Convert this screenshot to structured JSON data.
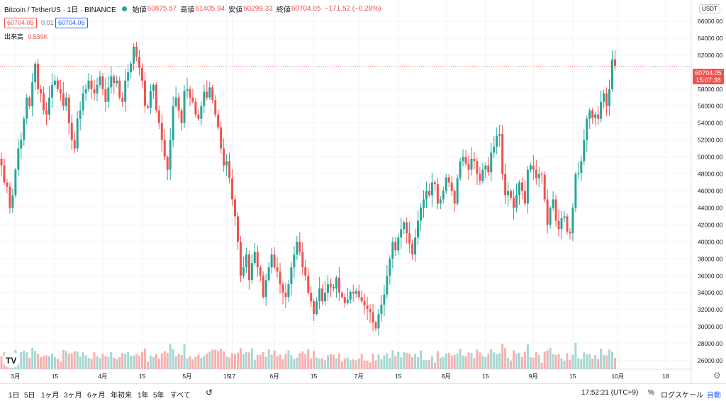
{
  "header": {
    "symbol": "Bitcoin / TetherUS · 1日 · BINANCE",
    "open_label": "始値",
    "open": "60875.57",
    "high_label": "高値",
    "high": "61405.94",
    "low_label": "安値",
    "low": "60299.33",
    "close_label": "終値",
    "close": "60704.05",
    "change": "−171.52 (−0.28%)",
    "sell_price": "60704.05",
    "spread": "0.01",
    "buy_price": "60704.06",
    "volume_label": "出来高",
    "volume_value": "9.539K"
  },
  "currency_label": "USDT",
  "current_price": {
    "value": "60704.05",
    "countdown": "15:07:38"
  },
  "toolbar": {
    "ranges": [
      "1日",
      "5日",
      "1ヶ月",
      "3ヶ月",
      "6ヶ月",
      "年初来",
      "1年",
      "5年",
      "すべて"
    ],
    "goto_icon": "calendar-jump-icon",
    "time": "17:52:21 (UTC+9)",
    "percent_label": "%",
    "log_label": "ログスケール",
    "auto_label": "自動"
  },
  "colors": {
    "up": "#26a69a",
    "down": "#ef5350",
    "up_vol": "#a5d8d2",
    "down_vol": "#f7b0ae",
    "grid": "#f0f3fa"
  },
  "chart_data": {
    "type": "candlestick",
    "y_ticks": [
      "66000.00",
      "64000.00",
      "62000.00",
      "58000.00",
      "56000.00",
      "54000.00",
      "52000.00",
      "50000.00",
      "48000.00",
      "46000.00",
      "44000.00",
      "42000.00",
      "40000.00",
      "38000.00",
      "36000.00",
      "34000.00",
      "32000.00",
      "30000.00",
      "28000.00",
      "26000.00"
    ],
    "y_tick_values": [
      66000,
      64000,
      62000,
      58000,
      56000,
      54000,
      52000,
      50000,
      48000,
      46000,
      44000,
      42000,
      40000,
      38000,
      36000,
      34000,
      32000,
      30000,
      28000,
      26000
    ],
    "ylim": [
      25000,
      68500
    ],
    "x_ticks": [
      {
        "label": "3月",
        "index": 5
      },
      {
        "label": "15",
        "index": 19
      },
      {
        "label": "4月",
        "index": 36
      },
      {
        "label": "15",
        "index": 50
      },
      {
        "label": "5月",
        "index": 66
      },
      {
        "label": "15",
        "index": 80
      },
      {
        "label": "17",
        "index": 82
      },
      {
        "label": "6月",
        "index": 97
      },
      {
        "label": "15",
        "index": 111
      },
      {
        "label": "7月",
        "index": 127
      },
      {
        "label": "15",
        "index": 141
      },
      {
        "label": "8月",
        "index": 158
      },
      {
        "label": "15",
        "index": 172
      },
      {
        "label": "9月",
        "index": 189
      },
      {
        "label": "15",
        "index": 203
      },
      {
        "label": "10月",
        "index": 219
      },
      {
        "label": "18",
        "index": 236
      }
    ],
    "closes": [
      49000,
      47000,
      46500,
      44000,
      45500,
      48500,
      51000,
      52000,
      54500,
      57000,
      56000,
      58800,
      61000,
      58000,
      57500,
      55500,
      55000,
      57000,
      58500,
      59000,
      58000,
      57500,
      56000,
      57000,
      54000,
      52000,
      51000,
      54500,
      55500,
      57500,
      58000,
      59000,
      58000,
      57500,
      58500,
      59500,
      58000,
      56500,
      58200,
      59500,
      58700,
      59000,
      57000,
      56500,
      59000,
      60000,
      61000,
      63000,
      61800,
      60500,
      59000,
      56000,
      55800,
      57800,
      58500,
      55500,
      54000,
      52000,
      50000,
      48500,
      52000,
      56000,
      57000,
      55500,
      54000,
      57800,
      58000,
      57000,
      56500,
      55000,
      54500,
      56000,
      57700,
      57000,
      58200,
      56700,
      55000,
      53500,
      51000,
      49000,
      49500,
      47500,
      45000,
      43000,
      40000,
      36000,
      37000,
      38500,
      35500,
      37500,
      38800,
      37000,
      36000,
      33500,
      35500,
      37000,
      38500,
      37000,
      36500,
      35000,
      34000,
      33500,
      35000,
      37000,
      38500,
      40000,
      38800,
      37000,
      36000,
      34000,
      33000,
      31500,
      33000,
      34500,
      33000,
      34000,
      35000,
      34700,
      34500,
      35800,
      34000,
      33500,
      32800,
      33200,
      34100,
      33900,
      34200,
      33500,
      33000,
      32500,
      32100,
      31700,
      30500,
      29800,
      31500,
      32600,
      33800,
      36000,
      38000,
      40000,
      39000,
      40500,
      41500,
      42300,
      41000,
      39800,
      38500,
      40500,
      42500,
      44000,
      45000,
      46000,
      45500,
      47000,
      46800,
      44500,
      45000,
      46000,
      47600,
      47000,
      46000,
      44500,
      47500,
      49500,
      50000,
      49200,
      48500,
      49800,
      49500,
      48000,
      47200,
      48500,
      49000,
      48200,
      50500,
      51200,
      52500,
      52700,
      48000,
      45500,
      46000,
      45200,
      44000,
      45500,
      47000,
      46000,
      44500,
      48500,
      49000,
      48500,
      47500,
      48000,
      47900,
      45000,
      42000,
      44000,
      45000,
      42500,
      41500,
      42800,
      43000,
      41200,
      41000,
      44000,
      48000,
      48100,
      49500,
      52000,
      54500,
      55500,
      54600,
      55000,
      54500,
      56500,
      57500,
      56000,
      58000,
      61500,
      60704
    ],
    "highs_are_approximate": true,
    "note_values": "daily BTC/USDT closes estimated from the axis"
  }
}
